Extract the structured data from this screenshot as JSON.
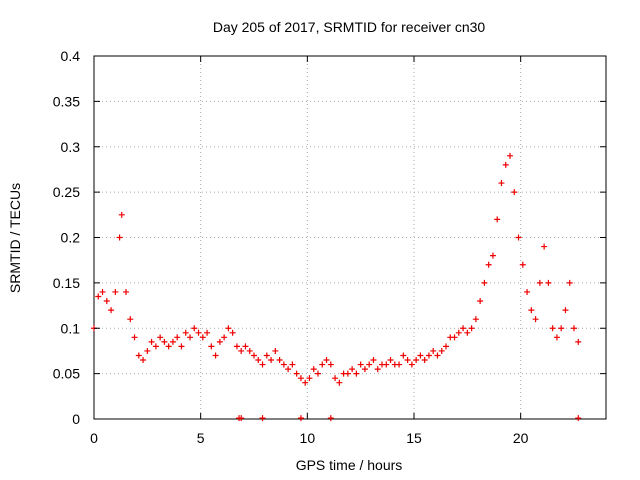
{
  "chart_data": {
    "type": "scatter",
    "title": "Day 205 of 2017, SRMTID for receiver cn30",
    "xlabel": "GPS time / hours",
    "ylabel": "SRMTID / TECUs",
    "xlim": [
      0,
      24
    ],
    "ylim": [
      0,
      0.4
    ],
    "x_ticks": [
      0,
      5,
      10,
      15,
      20
    ],
    "x_tick_labels": [
      "0",
      "5",
      "10",
      "15",
      "20"
    ],
    "y_ticks": [
      0,
      0.05,
      0.1,
      0.15,
      0.2,
      0.25,
      0.3,
      0.35,
      0.4
    ],
    "y_tick_labels": [
      "0",
      "0.05",
      "0.1",
      "0.15",
      "0.2",
      "0.25",
      "0.3",
      "0.35",
      "0.4"
    ],
    "grid": true,
    "marker": "plus",
    "color": "#ee0000",
    "series": [
      {
        "name": "SRMTID",
        "x": [
          0.0,
          0.2,
          0.4,
          0.6,
          0.8,
          1.0,
          1.2,
          1.3,
          1.5,
          1.7,
          1.9,
          2.1,
          2.3,
          2.5,
          2.7,
          2.9,
          3.1,
          3.3,
          3.5,
          3.7,
          3.9,
          4.1,
          4.3,
          4.5,
          4.7,
          4.9,
          5.1,
          5.3,
          5.5,
          5.7,
          5.9,
          6.1,
          6.3,
          6.5,
          6.7,
          6.9,
          7.1,
          7.3,
          7.5,
          7.7,
          7.9,
          8.1,
          8.3,
          8.5,
          8.7,
          8.9,
          9.1,
          9.3,
          9.5,
          9.7,
          9.9,
          10.1,
          10.3,
          10.5,
          10.7,
          10.9,
          11.1,
          11.3,
          11.5,
          11.7,
          11.9,
          12.1,
          12.3,
          12.5,
          12.7,
          12.9,
          13.1,
          13.3,
          13.5,
          13.7,
          13.9,
          14.1,
          14.3,
          14.5,
          14.7,
          14.9,
          15.1,
          15.3,
          15.5,
          15.7,
          15.9,
          16.1,
          16.3,
          16.5,
          16.7,
          16.9,
          17.1,
          17.3,
          17.5,
          17.7,
          17.9,
          18.1,
          18.3,
          18.5,
          18.7,
          18.9,
          19.1,
          19.3,
          19.5,
          19.7,
          19.9,
          20.1,
          20.3,
          20.5,
          20.7,
          20.9,
          21.1,
          21.3,
          21.5,
          21.7,
          21.9,
          22.1,
          22.3,
          22.5,
          22.7
        ],
        "y": [
          0.1,
          0.135,
          0.14,
          0.13,
          0.12,
          0.14,
          0.2,
          0.225,
          0.14,
          0.11,
          0.09,
          0.07,
          0.065,
          0.075,
          0.085,
          0.08,
          0.09,
          0.085,
          0.08,
          0.085,
          0.09,
          0.08,
          0.095,
          0.09,
          0.1,
          0.095,
          0.09,
          0.095,
          0.08,
          0.07,
          0.085,
          0.09,
          0.1,
          0.095,
          0.08,
          0.075,
          0.08,
          0.075,
          0.07,
          0.065,
          0.06,
          0.07,
          0.065,
          0.075,
          0.065,
          0.06,
          0.055,
          0.06,
          0.05,
          0.045,
          0.04,
          0.045,
          0.055,
          0.05,
          0.06,
          0.065,
          0.06,
          0.045,
          0.04,
          0.05,
          0.05,
          0.055,
          0.05,
          0.06,
          0.055,
          0.06,
          0.065,
          0.055,
          0.06,
          0.06,
          0.065,
          0.06,
          0.06,
          0.07,
          0.065,
          0.06,
          0.065,
          0.07,
          0.065,
          0.07,
          0.075,
          0.07,
          0.075,
          0.08,
          0.09,
          0.09,
          0.095,
          0.1,
          0.095,
          0.1,
          0.11,
          0.13,
          0.15,
          0.17,
          0.18,
          0.22,
          0.26,
          0.28,
          0.29,
          0.25,
          0.2,
          0.17,
          0.14,
          0.12,
          0.11,
          0.15,
          0.19,
          0.15,
          0.1,
          0.09,
          0.1,
          0.12,
          0.15,
          0.1,
          0.085
        ],
        "zero_x": [
          6.8,
          6.9,
          7.9,
          9.7,
          11.1,
          22.7
        ]
      }
    ]
  }
}
